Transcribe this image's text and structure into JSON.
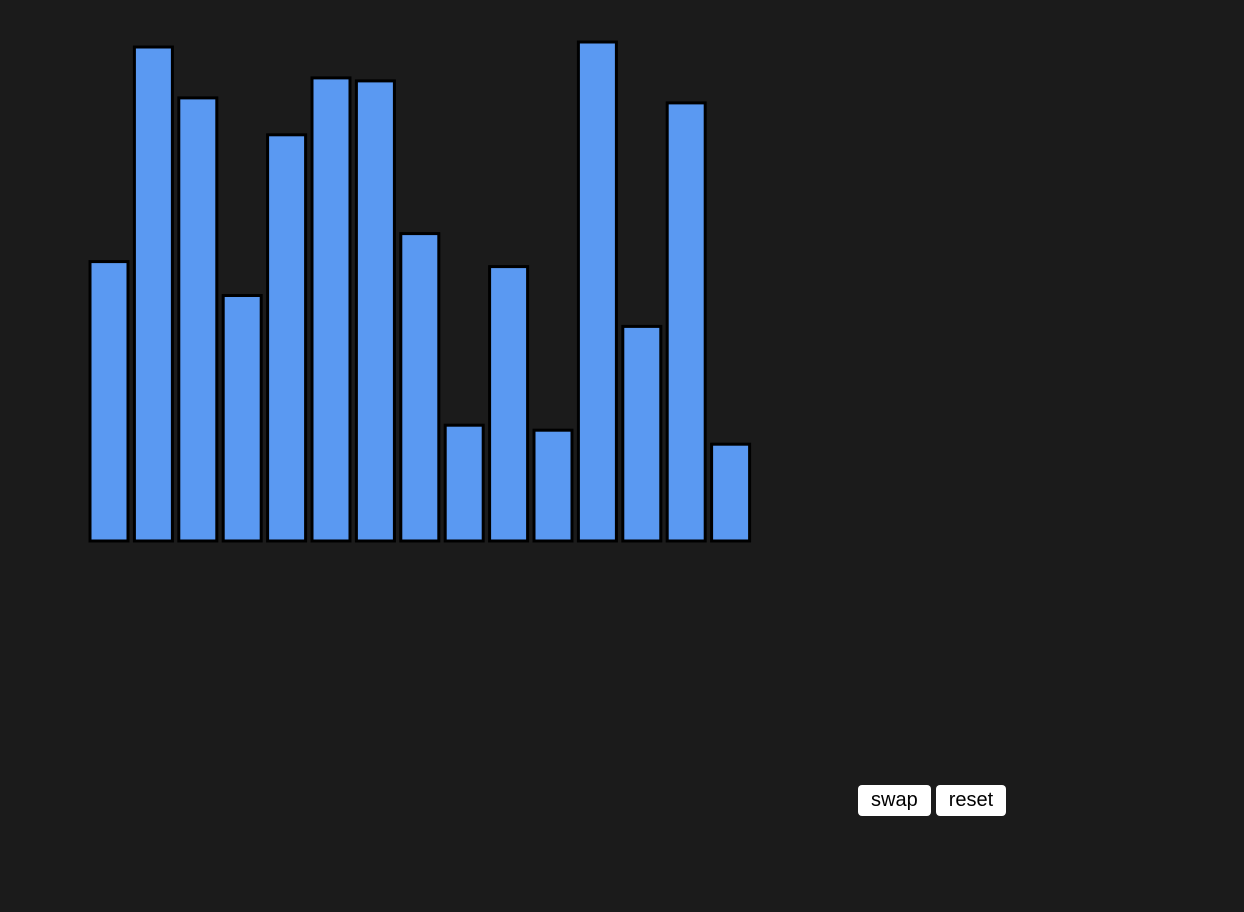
{
  "chart_data": {
    "type": "bar",
    "values": [
      280,
      495,
      444,
      246,
      407,
      464,
      461,
      308,
      116,
      275,
      111,
      500,
      215,
      439,
      97
    ],
    "ylim": [
      0,
      500
    ],
    "grid": false,
    "legend": "none",
    "bar_color": "#5a99f2",
    "bar_stroke": "#000000"
  },
  "controls": {
    "swap_label": "swap",
    "reset_label": "reset"
  }
}
